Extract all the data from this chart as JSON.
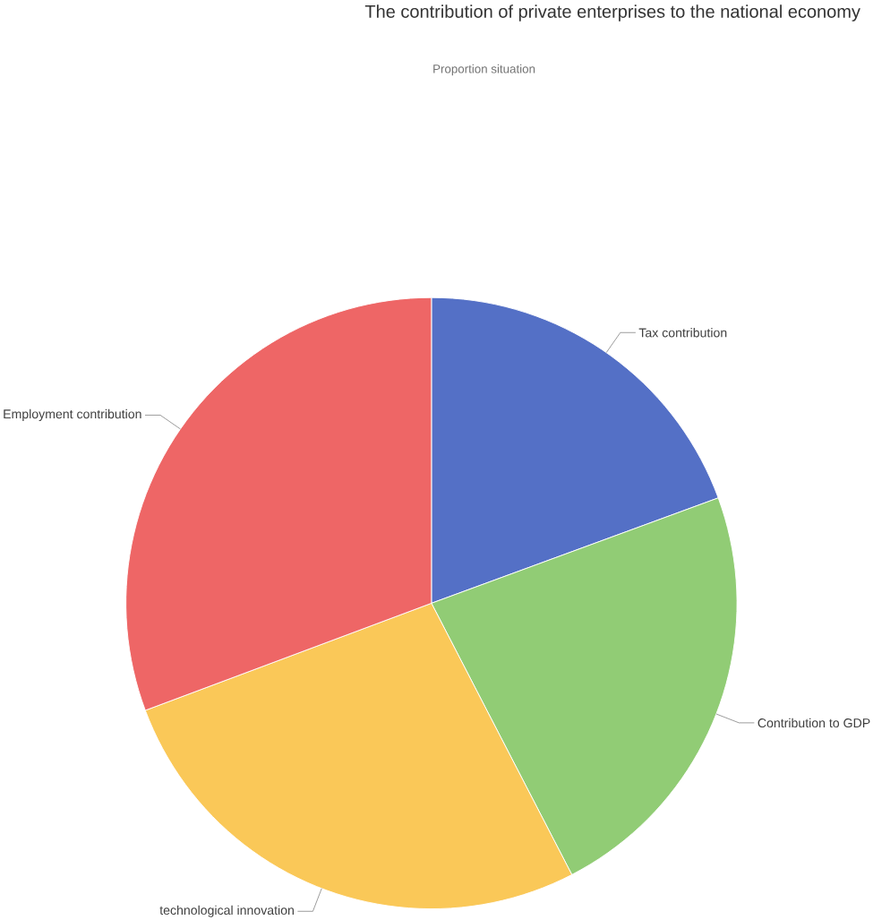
{
  "chart_data": {
    "type": "pie",
    "title": "The contribution of private enterprises to the national economy",
    "subtitle": "Proportion situation",
    "categories": [
      "Tax contribution",
      "Contribution to GDP",
      "technological innovation",
      "Employment contribution"
    ],
    "values": [
      19.4,
      23,
      26.9,
      30.7
    ],
    "colors": [
      "#5470c6",
      "#91cc75",
      "#fac858",
      "#ee6666"
    ]
  }
}
